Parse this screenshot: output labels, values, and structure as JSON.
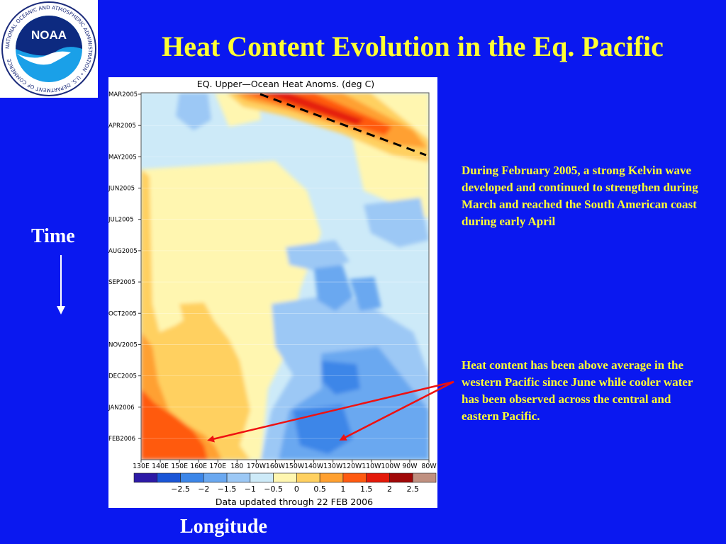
{
  "slide": {
    "title": "Heat Content Evolution in the Eq. Pacific",
    "time_label": "Time",
    "longitude_label": "Longitude",
    "logo": {
      "text": "NOAA",
      "ring_text": "NATIONAL OCEANIC AND ATMOSPHERIC ADMINISTRATION • U.S. DEPARTMENT OF COMMERCE"
    },
    "notes": [
      "During February 2005, a strong Kelvin wave developed and continued to strengthen during March and reached the South American coast during early April",
      "Heat content has been above average in the western Pacific since June while cooler water has been observed across the central and eastern Pacific."
    ]
  },
  "colors": {
    "background": "#0a18f0",
    "title": "#ffff33",
    "arrow": "#ee1111"
  },
  "chart_data": {
    "type": "heatmap",
    "title": "EQ. Upper—Ocean Heat Anoms. (deg C)",
    "footer": "Data updated through 22 FEB 2006",
    "xlabel": "Longitude",
    "ylabel": "Time",
    "x_ticks": [
      "130E",
      "140E",
      "150E",
      "160E",
      "170E",
      "180",
      "170W",
      "160W",
      "150W",
      "140W",
      "130W",
      "120W",
      "110W",
      "100W",
      "90W",
      "80W"
    ],
    "y_ticks": [
      "MAR2005",
      "APR2005",
      "MAY2005",
      "JUN2005",
      "JUL2005",
      "AUG2005",
      "SEP2005",
      "OCT2005",
      "NOV2005",
      "DEC2005",
      "JAN2006",
      "FEB2006"
    ],
    "colorbar": {
      "labels": [
        "−2.5",
        "−2",
        "−1.5",
        "−1",
        "−0.5",
        "0",
        "0.5",
        "1",
        "1.5",
        "2",
        "2.5"
      ],
      "colors": [
        "#2d1aa6",
        "#1a55d6",
        "#3c86e8",
        "#6aa8f0",
        "#9cc8f5",
        "#cdeaf8",
        "#fff6b0",
        "#ffd060",
        "#ffa030",
        "#ff5a10",
        "#e41a0a",
        "#a00808",
        "#c09080"
      ]
    },
    "annotation": "Kelvin wave path (dashed line), MAR2005 170W to MAY2005 80W",
    "anomalies": [
      {
        "label": "Kelvin wave warm anomaly",
        "lon": "175W–80W",
        "time": "MAR2005–MAY2005",
        "value": 2.5
      },
      {
        "label": "western Pacific warm anomaly",
        "lon": "130E–180",
        "time": "JUN2005–FEB2006",
        "value": 1.5
      },
      {
        "label": "central-eastern Pacific cool anomaly",
        "lon": "170W–90W",
        "time": "JUL2005–FEB2006",
        "value": -1.5
      }
    ]
  }
}
